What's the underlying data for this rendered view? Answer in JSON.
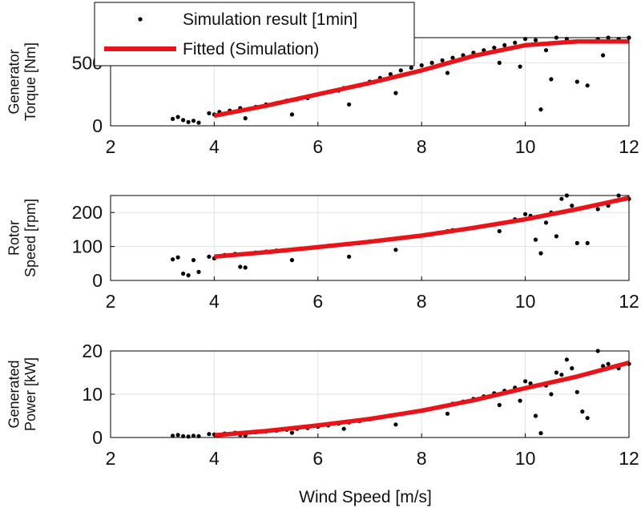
{
  "chart_data": [
    {
      "type": "scatter",
      "ylabel": [
        "Generator",
        "Torque [Nm]"
      ],
      "xlim": [
        2,
        12
      ],
      "ylim": [
        0,
        700
      ],
      "xticks": [
        2,
        4,
        6,
        8,
        10,
        12
      ],
      "yticks": [
        0,
        500
      ],
      "grid": true,
      "series": [
        {
          "name": "Simulation result [1min]",
          "style": "markers",
          "points": [
            [
              3.2,
              55
            ],
            [
              3.3,
              70
            ],
            [
              3.4,
              45
            ],
            [
              3.5,
              30
            ],
            [
              3.6,
              40
            ],
            [
              3.7,
              25
            ],
            [
              3.9,
              100
            ],
            [
              4.0,
              90
            ],
            [
              4.1,
              110
            ],
            [
              4.3,
              120
            ],
            [
              4.5,
              140
            ],
            [
              4.6,
              60
            ],
            [
              4.8,
              150
            ],
            [
              5.0,
              170
            ],
            [
              5.2,
              180
            ],
            [
              5.4,
              200
            ],
            [
              5.5,
              90
            ],
            [
              5.6,
              210
            ],
            [
              5.8,
              220
            ],
            [
              6.0,
              250
            ],
            [
              6.2,
              270
            ],
            [
              6.4,
              280
            ],
            [
              6.5,
              300
            ],
            [
              6.6,
              170
            ],
            [
              6.8,
              320
            ],
            [
              7.0,
              350
            ],
            [
              7.2,
              380
            ],
            [
              7.4,
              410
            ],
            [
              7.5,
              260
            ],
            [
              7.6,
              440
            ],
            [
              7.8,
              460
            ],
            [
              8.0,
              480
            ],
            [
              8.2,
              500
            ],
            [
              8.4,
              520
            ],
            [
              8.5,
              420
            ],
            [
              8.6,
              540
            ],
            [
              8.8,
              560
            ],
            [
              9.0,
              580
            ],
            [
              9.2,
              600
            ],
            [
              9.4,
              620
            ],
            [
              9.5,
              500
            ],
            [
              9.6,
              640
            ],
            [
              9.8,
              660
            ],
            [
              9.9,
              470
            ],
            [
              10.0,
              690
            ],
            [
              10.2,
              680
            ],
            [
              10.3,
              130
            ],
            [
              10.4,
              600
            ],
            [
              10.5,
              370
            ],
            [
              10.6,
              700
            ],
            [
              10.8,
              690
            ],
            [
              11.0,
              350
            ],
            [
              11.2,
              320
            ],
            [
              11.4,
              690
            ],
            [
              11.5,
              560
            ],
            [
              11.6,
              700
            ],
            [
              11.8,
              690
            ],
            [
              12.0,
              700
            ]
          ]
        },
        {
          "name": "Fitted (Simulation)",
          "style": "line",
          "color": "#e8141a",
          "points": [
            [
              4,
              80
            ],
            [
              5,
              160
            ],
            [
              6,
              250
            ],
            [
              7,
              340
            ],
            [
              8,
              440
            ],
            [
              9,
              555
            ],
            [
              10,
              640
            ],
            [
              11,
              670
            ],
            [
              12,
              670
            ]
          ]
        }
      ],
      "legend": {
        "entries": [
          "Simulation result [1min]",
          "Fitted (Simulation)"
        ],
        "placement": "top-left, above the top panel"
      }
    },
    {
      "type": "scatter",
      "ylabel": [
        "Rotor",
        "Speed [rpm]"
      ],
      "xlim": [
        2,
        12
      ],
      "ylim": [
        0,
        250
      ],
      "xticks": [
        2,
        4,
        6,
        8,
        10,
        12
      ],
      "yticks": [
        0,
        100,
        200
      ],
      "grid": true,
      "series": [
        {
          "name": "Simulation result [1min]",
          "style": "markers",
          "points": [
            [
              3.2,
              62
            ],
            [
              3.3,
              68
            ],
            [
              3.4,
              20
            ],
            [
              3.5,
              15
            ],
            [
              3.6,
              60
            ],
            [
              3.7,
              25
            ],
            [
              3.9,
              70
            ],
            [
              4.0,
              65
            ],
            [
              4.2,
              75
            ],
            [
              4.4,
              78
            ],
            [
              4.5,
              40
            ],
            [
              4.6,
              38
            ],
            [
              4.8,
              82
            ],
            [
              5.0,
              85
            ],
            [
              5.2,
              88
            ],
            [
              5.5,
              60
            ],
            [
              5.6,
              92
            ],
            [
              5.8,
              95
            ],
            [
              6.0,
              98
            ],
            [
              6.2,
              102
            ],
            [
              6.4,
              105
            ],
            [
              6.6,
              70
            ],
            [
              6.8,
              110
            ],
            [
              7.0,
              115
            ],
            [
              7.2,
              118
            ],
            [
              7.5,
              90
            ],
            [
              7.6,
              125
            ],
            [
              7.8,
              128
            ],
            [
              8.0,
              132
            ],
            [
              8.2,
              136
            ],
            [
              8.5,
              145
            ],
            [
              8.6,
              148
            ],
            [
              8.8,
              150
            ],
            [
              9.0,
              155
            ],
            [
              9.2,
              160
            ],
            [
              9.4,
              165
            ],
            [
              9.5,
              145
            ],
            [
              9.6,
              170
            ],
            [
              9.8,
              180
            ],
            [
              10.0,
              195
            ],
            [
              10.1,
              190
            ],
            [
              10.2,
              120
            ],
            [
              10.3,
              80
            ],
            [
              10.4,
              170
            ],
            [
              10.5,
              200
            ],
            [
              10.6,
              130
            ],
            [
              10.7,
              240
            ],
            [
              10.8,
              250
            ],
            [
              10.9,
              220
            ],
            [
              11.0,
              110
            ],
            [
              11.2,
              110
            ],
            [
              11.4,
              210
            ],
            [
              11.6,
              220
            ],
            [
              11.8,
              250
            ],
            [
              12.0,
              240
            ]
          ]
        },
        {
          "name": "Fitted (Simulation)",
          "style": "line",
          "color": "#e8141a",
          "points": [
            [
              4,
              70
            ],
            [
              5,
              83
            ],
            [
              6,
              98
            ],
            [
              7,
              114
            ],
            [
              8,
              132
            ],
            [
              9,
              155
            ],
            [
              10,
              180
            ],
            [
              11,
              210
            ],
            [
              12,
              243
            ]
          ]
        }
      ]
    },
    {
      "type": "scatter",
      "ylabel": [
        "Generated",
        "Power [kW]"
      ],
      "xlabel": "Wind Speed [m/s]",
      "xlim": [
        2,
        12
      ],
      "ylim": [
        0,
        20
      ],
      "xticks": [
        2,
        4,
        6,
        8,
        10,
        12
      ],
      "yticks": [
        0,
        10,
        20
      ],
      "grid": true,
      "series": [
        {
          "name": "Simulation result [1min]",
          "style": "markers",
          "points": [
            [
              3.2,
              0.4
            ],
            [
              3.3,
              0.6
            ],
            [
              3.4,
              0.3
            ],
            [
              3.5,
              0.2
            ],
            [
              3.6,
              0.4
            ],
            [
              3.7,
              0.3
            ],
            [
              3.9,
              0.8
            ],
            [
              4.0,
              0.7
            ],
            [
              4.2,
              0.9
            ],
            [
              4.4,
              1.1
            ],
            [
              4.5,
              0.6
            ],
            [
              4.6,
              0.5
            ],
            [
              4.8,
              1.2
            ],
            [
              5.0,
              1.4
            ],
            [
              5.2,
              1.6
            ],
            [
              5.4,
              1.8
            ],
            [
              5.5,
              1.1
            ],
            [
              5.6,
              2.0
            ],
            [
              5.8,
              2.2
            ],
            [
              6.0,
              2.5
            ],
            [
              6.2,
              2.8
            ],
            [
              6.4,
              3.2
            ],
            [
              6.5,
              2.0
            ],
            [
              6.6,
              3.5
            ],
            [
              6.8,
              3.8
            ],
            [
              7.0,
              4.2
            ],
            [
              7.2,
              4.6
            ],
            [
              7.4,
              5.0
            ],
            [
              7.5,
              3.0
            ],
            [
              7.6,
              5.4
            ],
            [
              7.8,
              5.8
            ],
            [
              8.0,
              6.2
            ],
            [
              8.2,
              6.7
            ],
            [
              8.4,
              7.2
            ],
            [
              8.5,
              5.5
            ],
            [
              8.6,
              7.8
            ],
            [
              8.8,
              8.3
            ],
            [
              9.0,
              8.9
            ],
            [
              9.2,
              9.5
            ],
            [
              9.4,
              10.2
            ],
            [
              9.5,
              7.5
            ],
            [
              9.6,
              10.8
            ],
            [
              9.8,
              11.5
            ],
            [
              9.9,
              8.5
            ],
            [
              10.0,
              13.0
            ],
            [
              10.1,
              12.5
            ],
            [
              10.2,
              5.0
            ],
            [
              10.3,
              1.0
            ],
            [
              10.4,
              12.0
            ],
            [
              10.5,
              10.0
            ],
            [
              10.6,
              15.0
            ],
            [
              10.7,
              14.5
            ],
            [
              10.8,
              18.0
            ],
            [
              10.9,
              16.0
            ],
            [
              11.0,
              10.5
            ],
            [
              11.1,
              6.0
            ],
            [
              11.2,
              4.5
            ],
            [
              11.4,
              20.0
            ],
            [
              11.5,
              16.5
            ],
            [
              11.6,
              17.0
            ],
            [
              11.8,
              16.0
            ],
            [
              12.0,
              17.0
            ]
          ]
        },
        {
          "name": "Fitted (Simulation)",
          "style": "line",
          "color": "#e8141a",
          "points": [
            [
              4,
              0.5
            ],
            [
              5,
              1.5
            ],
            [
              6,
              2.8
            ],
            [
              7,
              4.3
            ],
            [
              8,
              6.2
            ],
            [
              9,
              8.6
            ],
            [
              10,
              11.4
            ],
            [
              11,
              14.1
            ],
            [
              12,
              17.3
            ]
          ]
        }
      ]
    }
  ]
}
